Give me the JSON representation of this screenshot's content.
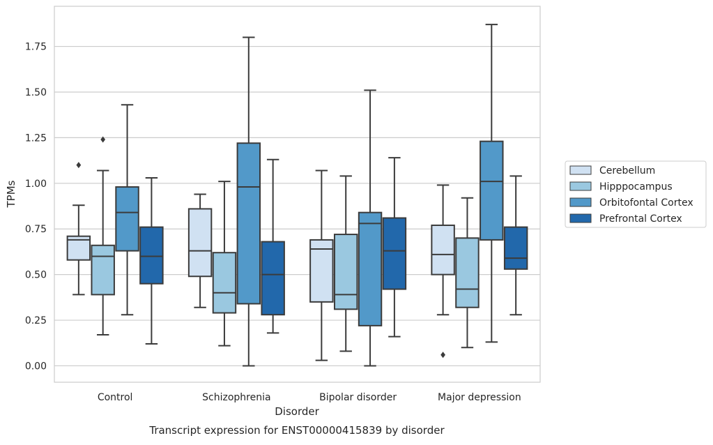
{
  "chart_data": {
    "type": "box",
    "title": "",
    "caption": "Transcript expression for ENST00000415839 by disorder",
    "xlabel": "Disorder",
    "ylabel": "TPMs",
    "ylim": [
      -0.09,
      1.97
    ],
    "yticks": [
      0.0,
      0.25,
      0.5,
      0.75,
      1.0,
      1.25,
      1.5,
      1.75
    ],
    "ytick_labels": [
      "0.00",
      "0.25",
      "0.50",
      "0.75",
      "1.00",
      "1.25",
      "1.50",
      "1.75"
    ],
    "grid": "horizontal",
    "legend_position": "right",
    "categories": [
      "Control",
      "Schizophrenia",
      "Bipolar disorder",
      "Major depression"
    ],
    "series": [
      {
        "name": "Cerebellum",
        "color": "#d0e1f2",
        "boxes": [
          {
            "min": 0.39,
            "q1": 0.58,
            "median": 0.69,
            "q3": 0.71,
            "max": 0.88,
            "outliers": [
              1.1
            ]
          },
          {
            "min": 0.32,
            "q1": 0.49,
            "median": 0.63,
            "q3": 0.86,
            "max": 0.94,
            "outliers": []
          },
          {
            "min": 0.03,
            "q1": 0.35,
            "median": 0.64,
            "q3": 0.69,
            "max": 1.07,
            "outliers": []
          },
          {
            "min": 0.28,
            "q1": 0.5,
            "median": 0.61,
            "q3": 0.77,
            "max": 0.99,
            "outliers": [
              0.06
            ]
          }
        ]
      },
      {
        "name": "Hipppocampus",
        "color": "#9ac8e0",
        "boxes": [
          {
            "min": 0.17,
            "q1": 0.39,
            "median": 0.6,
            "q3": 0.66,
            "max": 1.07,
            "outliers": [
              1.24
            ]
          },
          {
            "min": 0.11,
            "q1": 0.29,
            "median": 0.4,
            "q3": 0.62,
            "max": 1.01,
            "outliers": []
          },
          {
            "min": 0.08,
            "q1": 0.31,
            "median": 0.39,
            "q3": 0.72,
            "max": 1.04,
            "outliers": []
          },
          {
            "min": 0.1,
            "q1": 0.32,
            "median": 0.42,
            "q3": 0.7,
            "max": 0.92,
            "outliers": []
          }
        ]
      },
      {
        "name": "Orbitofontal Cortex",
        "color": "#5299c9",
        "boxes": [
          {
            "min": 0.28,
            "q1": 0.63,
            "median": 0.84,
            "q3": 0.98,
            "max": 1.43,
            "outliers": []
          },
          {
            "min": 0.0,
            "q1": 0.34,
            "median": 0.98,
            "q3": 1.22,
            "max": 1.8,
            "outliers": []
          },
          {
            "min": 0.0,
            "q1": 0.22,
            "median": 0.78,
            "q3": 0.84,
            "max": 1.51,
            "outliers": []
          },
          {
            "min": 0.13,
            "q1": 0.69,
            "median": 1.01,
            "q3": 1.23,
            "max": 1.87,
            "outliers": []
          }
        ]
      },
      {
        "name": "Prefrontal Cortex",
        "color": "#2268ab",
        "boxes": [
          {
            "min": 0.12,
            "q1": 0.45,
            "median": 0.6,
            "q3": 0.76,
            "max": 1.03,
            "outliers": []
          },
          {
            "min": 0.18,
            "q1": 0.28,
            "median": 0.5,
            "q3": 0.68,
            "max": 1.13,
            "outliers": []
          },
          {
            "min": 0.16,
            "q1": 0.42,
            "median": 0.63,
            "q3": 0.81,
            "max": 1.14,
            "outliers": []
          },
          {
            "min": 0.28,
            "q1": 0.53,
            "median": 0.59,
            "q3": 0.76,
            "max": 1.04,
            "outliers": []
          }
        ]
      }
    ]
  }
}
